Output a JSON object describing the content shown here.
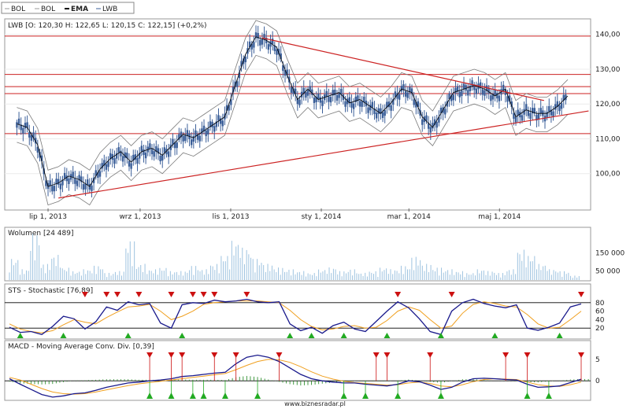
{
  "legend": [
    {
      "label": "BOL",
      "color": "#9a9a9a"
    },
    {
      "label": "BOL",
      "color": "#9a9a9a"
    },
    {
      "label": "EMA",
      "color": "#000000"
    },
    {
      "label": "LWB",
      "color": "#3b5f99"
    }
  ],
  "footer": "www.biznesradar.pl",
  "colors": {
    "candle": "#3b5f99",
    "trend": "#cc2222",
    "volume": "#9ec3e0",
    "stoch_k": "#1a1a8c",
    "stoch_d": "#f0a020",
    "macd": "#1a1a8c",
    "signal": "#f0a020",
    "hist": "#2f8f2f",
    "buy": "#22aa22",
    "sell": "#cc1111"
  },
  "chart_data": [
    {
      "type": "line",
      "panel": "price",
      "title": "LWB [O: 120,30  H: 122,65  L: 120,15  C: 122,15] (+0,2%)",
      "x_tick_labels": [
        "lip 1, 2013",
        "wrz 1, 2013",
        "lis 1, 2013",
        "sty 1, 2014",
        "mar 1, 2014",
        "maj 1, 2014"
      ],
      "y_tick_labels": [
        "100,00",
        "110,00",
        "120,00",
        "130,00",
        "140,00"
      ],
      "ylim": [
        90,
        144
      ],
      "series": [
        {
          "name": "LWB",
          "x": [
            "2013-06-10",
            "2013-06-17",
            "2013-06-24",
            "2013-07-01",
            "2013-07-08",
            "2013-07-15",
            "2013-07-22",
            "2013-07-29",
            "2013-08-05",
            "2013-08-12",
            "2013-08-19",
            "2013-08-26",
            "2013-09-02",
            "2013-09-09",
            "2013-09-16",
            "2013-09-23",
            "2013-09-30",
            "2013-10-07",
            "2013-10-14",
            "2013-10-21",
            "2013-10-28",
            "2013-11-04",
            "2013-11-11",
            "2013-11-18",
            "2013-11-25",
            "2013-12-02",
            "2013-12-09",
            "2013-12-16",
            "2013-12-23",
            "2013-12-30",
            "2014-01-06",
            "2014-01-13",
            "2014-01-20",
            "2014-01-27",
            "2014-02-03",
            "2014-02-10",
            "2014-02-17",
            "2014-02-24",
            "2014-03-03",
            "2014-03-10",
            "2014-03-17",
            "2014-03-24",
            "2014-03-31",
            "2014-04-07",
            "2014-04-14",
            "2014-04-21",
            "2014-04-28",
            "2014-05-05",
            "2014-05-12",
            "2014-05-19",
            "2014-05-26",
            "2014-06-02",
            "2014-06-09",
            "2014-06-16"
          ],
          "y": [
            114,
            113,
            108,
            96,
            97,
            99,
            98,
            96,
            101,
            104,
            106,
            103,
            106,
            107,
            105,
            108,
            111,
            110,
            112,
            114,
            116,
            125,
            134,
            139,
            138,
            136,
            128,
            121,
            124,
            121,
            122,
            123,
            120,
            121,
            119,
            117,
            120,
            124,
            123,
            116,
            113,
            118,
            123,
            124,
            125,
            124,
            122,
            124,
            116,
            118,
            117,
            117,
            119,
            122
          ]
        },
        {
          "name": "trend-upper",
          "x": [
            "2013-11-22",
            "2014-05-31"
          ],
          "y": [
            139,
            121
          ]
        },
        {
          "name": "trend-lower",
          "x": [
            "2013-07-08",
            "2014-06-30"
          ],
          "y": [
            93,
            118
          ]
        }
      ],
      "horizontal_lines": [
        139.5,
        128.5,
        125,
        123,
        111.5
      ]
    },
    {
      "type": "bar",
      "panel": "volume",
      "title": "Wolumen [24 489]",
      "y_tick_labels": [
        "50 000",
        "150 000"
      ],
      "ylim": [
        0,
        280000
      ],
      "series": [
        {
          "name": "Wolumen",
          "values": [
            120000,
            60000,
            260000,
            90000,
            140000,
            70000,
            50000,
            60000,
            80000,
            40000,
            50000,
            220000,
            90000,
            60000,
            70000,
            50000,
            50000,
            80000,
            60000,
            90000,
            140000,
            220000,
            180000,
            120000,
            90000,
            70000,
            60000,
            50000,
            40000,
            60000,
            70000,
            50000,
            60000,
            40000,
            50000,
            70000,
            60000,
            80000,
            130000,
            90000,
            70000,
            60000,
            50000,
            40000,
            60000,
            50000,
            40000,
            60000,
            170000,
            140000,
            90000,
            60000,
            50000,
            24489
          ]
        }
      ]
    },
    {
      "type": "line",
      "panel": "stochastic",
      "title": "STS - Stochastic [76,89]",
      "y_tick_labels": [
        "20",
        "40",
        "60",
        "80"
      ],
      "ylim": [
        0,
        100
      ],
      "series": [
        {
          "name": "%K",
          "values": [
            22,
            10,
            12,
            5,
            24,
            48,
            42,
            18,
            35,
            70,
            62,
            82,
            75,
            78,
            32,
            20,
            75,
            80,
            78,
            86,
            82,
            84,
            88,
            82,
            80,
            82,
            30,
            14,
            22,
            8,
            26,
            34,
            18,
            12,
            36,
            60,
            82,
            68,
            42,
            12,
            5,
            60,
            80,
            88,
            78,
            72,
            68,
            75,
            20,
            15,
            22,
            32,
            70,
            77
          ]
        },
        {
          "name": "%D",
          "values": [
            30,
            18,
            12,
            9,
            14,
            28,
            40,
            34,
            30,
            45,
            58,
            70,
            72,
            76,
            60,
            40,
            48,
            60,
            76,
            80,
            82,
            84,
            84,
            84,
            82,
            80,
            62,
            40,
            24,
            16,
            18,
            24,
            26,
            20,
            22,
            38,
            60,
            70,
            62,
            40,
            20,
            25,
            55,
            76,
            82,
            78,
            72,
            70,
            52,
            30,
            20,
            22,
            40,
            60
          ]
        }
      ],
      "buy_signals_x": [
        1,
        5,
        11,
        16,
        26,
        28,
        31,
        35,
        40,
        45,
        51
      ],
      "sell_signals_x": [
        7,
        9,
        10,
        12,
        15,
        17,
        18,
        19,
        22,
        36,
        41,
        53
      ]
    },
    {
      "type": "line",
      "panel": "macd",
      "title": "MACD - Moving Average Conv. Div. [0,39]",
      "y_tick_labels": [
        "0",
        "5"
      ],
      "ylim": [
        -4,
        7
      ],
      "series": [
        {
          "name": "MACD",
          "values": [
            0.5,
            -0.8,
            -2,
            -3.2,
            -3.8,
            -3.5,
            -3,
            -2.8,
            -2.2,
            -1.5,
            -1,
            -0.5,
            -0.3,
            0,
            0.2,
            0.5,
            1,
            1.2,
            1.5,
            1.8,
            2,
            4,
            5.5,
            6,
            5.5,
            4.5,
            3,
            1.5,
            0.5,
            0,
            -0.3,
            -0.5,
            -0.5,
            -0.8,
            -1,
            -1.2,
            -0.8,
            0,
            -0.2,
            -1,
            -2,
            -1.5,
            -0.3,
            0.5,
            0.6,
            0.5,
            0.3,
            0.2,
            -0.8,
            -1.5,
            -1.4,
            -1.2,
            -0.4,
            0.39
          ]
        },
        {
          "name": "Signal",
          "values": [
            0.8,
            0.2,
            -0.8,
            -1.8,
            -2.6,
            -3,
            -3.1,
            -3,
            -2.6,
            -2.1,
            -1.6,
            -1.1,
            -0.7,
            -0.4,
            -0.1,
            0.2,
            0.5,
            0.8,
            1.1,
            1.4,
            1.7,
            2.6,
            3.6,
            4.5,
            5,
            4.9,
            4.3,
            3.3,
            2.1,
            1.1,
            0.4,
            -0.1,
            -0.4,
            -0.6,
            -0.8,
            -1,
            -0.9,
            -0.5,
            -0.3,
            -0.6,
            -1.2,
            -1.4,
            -0.9,
            -0.2,
            0.3,
            0.5,
            0.4,
            0.3,
            -0.3,
            -0.9,
            -1.2,
            -1.3,
            -0.9,
            -0.3
          ]
        }
      ],
      "buy_signals_x": [
        13,
        15,
        17,
        18,
        20,
        23,
        31,
        33,
        36,
        40,
        48,
        50
      ],
      "sell_signals_x": [
        13,
        15,
        16,
        19,
        21,
        25,
        34,
        35,
        39,
        46,
        48,
        53
      ]
    }
  ]
}
